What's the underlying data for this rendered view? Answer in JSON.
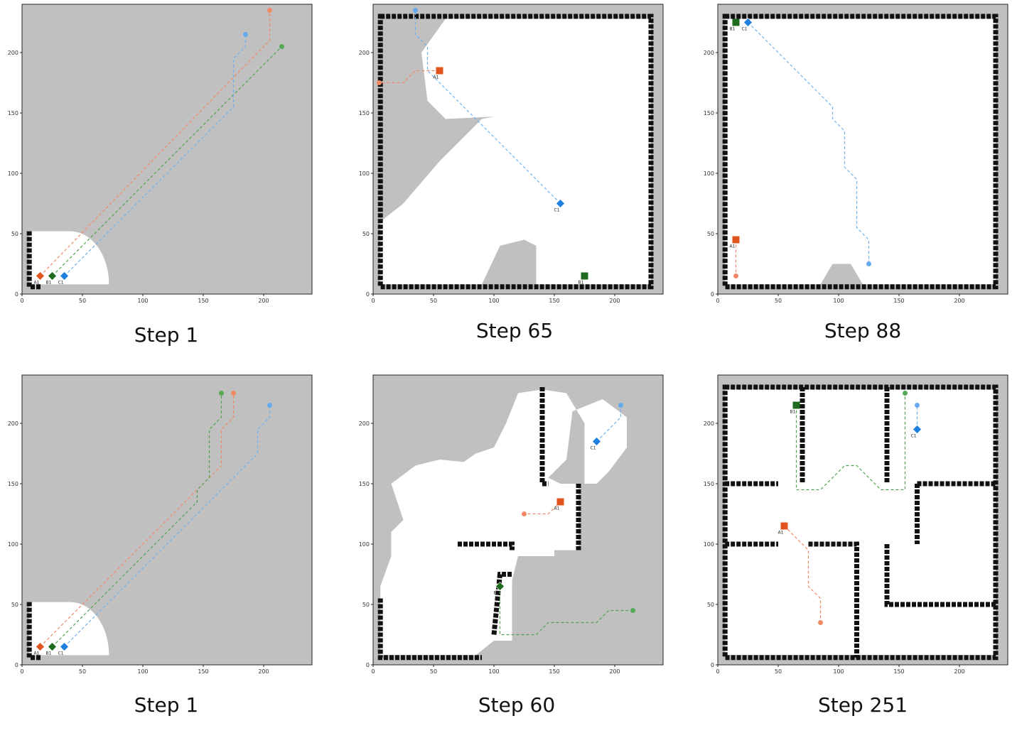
{
  "colors": {
    "unknown": "#c0c0c0",
    "free": "#ffffff",
    "wall": "#111111",
    "robot_a": "#e2541d",
    "robot_b": "#1e6b1e",
    "robot_c": "#1f7fe0",
    "path_a": "#f08a65",
    "path_b": "#4fa34f",
    "path_c": "#6fb2ee",
    "goal_a": "#f08a65",
    "goal_b": "#55aa55",
    "goal_c": "#66aaee"
  },
  "axis_ticks": {
    "x": [
      "0",
      "50",
      "100",
      "150",
      "200"
    ],
    "y": [
      "0",
      "50",
      "100",
      "150",
      "200"
    ]
  },
  "panels": [
    {
      "caption": "Step 1",
      "robots": [
        {
          "label": "A1",
          "id": "a",
          "shape": "diamond",
          "x": 15,
          "y": 15,
          "goal": [
            205,
            235
          ],
          "path": [
            [
              15,
              15
            ],
            [
              195,
              200
            ],
            [
              205,
              210
            ],
            [
              205,
              235
            ]
          ]
        },
        {
          "label": "B1",
          "id": "b",
          "shape": "diamond",
          "x": 25,
          "y": 15,
          "goal": [
            215,
            205
          ],
          "path": [
            [
              25,
              15
            ],
            [
              215,
              205
            ]
          ]
        },
        {
          "label": "C1",
          "id": "c",
          "shape": "diamond",
          "x": 35,
          "y": 15,
          "goal": [
            185,
            215
          ],
          "path": [
            [
              35,
              15
            ],
            [
              175,
              155
            ],
            [
              175,
              195
            ],
            [
              185,
              205
            ],
            [
              185,
              215
            ]
          ]
        }
      ]
    },
    {
      "caption": "Step 65",
      "robots": [
        {
          "label": "A1",
          "id": "a",
          "shape": "square",
          "x": 55,
          "y": 185,
          "goal": [
            5,
            175
          ],
          "path": [
            [
              55,
              185
            ],
            [
              35,
              185
            ],
            [
              25,
              175
            ],
            [
              5,
              175
            ]
          ]
        },
        {
          "label": "B1",
          "id": "b",
          "shape": "square",
          "x": 175,
          "y": 15,
          "goal": null,
          "path": []
        },
        {
          "label": "C1",
          "id": "c",
          "shape": "diamond",
          "x": 155,
          "y": 75,
          "goal": [
            35,
            235
          ],
          "path": [
            [
              155,
              75
            ],
            [
              45,
              185
            ],
            [
              45,
              205
            ],
            [
              35,
              215
            ],
            [
              35,
              235
            ]
          ]
        }
      ]
    },
    {
      "caption": "Step 88",
      "robots": [
        {
          "label": "A1",
          "id": "a",
          "shape": "square",
          "x": 15,
          "y": 45,
          "goal": [
            15,
            15
          ],
          "path": [
            [
              15,
              45
            ],
            [
              15,
              15
            ]
          ]
        },
        {
          "label": "B1",
          "id": "b",
          "shape": "square",
          "x": 15,
          "y": 225,
          "goal": null,
          "path": []
        },
        {
          "label": "C1",
          "id": "c",
          "shape": "diamond",
          "x": 25,
          "y": 225,
          "goal": [
            125,
            25
          ],
          "path": [
            [
              25,
              225
            ],
            [
              95,
              155
            ],
            [
              95,
              145
            ],
            [
              105,
              135
            ],
            [
              105,
              105
            ],
            [
              115,
              95
            ],
            [
              115,
              55
            ],
            [
              125,
              45
            ],
            [
              125,
              25
            ]
          ]
        }
      ]
    },
    {
      "caption": "Step 1",
      "robots": [
        {
          "label": "A1",
          "id": "a",
          "shape": "diamond",
          "x": 15,
          "y": 15,
          "goal": [
            175,
            225
          ],
          "path": [
            [
              15,
              15
            ],
            [
              165,
              165
            ],
            [
              165,
              195
            ],
            [
              175,
              205
            ],
            [
              175,
              225
            ]
          ]
        },
        {
          "label": "B1",
          "id": "b",
          "shape": "diamond",
          "x": 25,
          "y": 15,
          "goal": [
            165,
            225
          ],
          "path": [
            [
              25,
              15
            ],
            [
              145,
              135
            ],
            [
              145,
              145
            ],
            [
              155,
              155
            ],
            [
              155,
              195
            ],
            [
              165,
              205
            ],
            [
              165,
              225
            ]
          ]
        },
        {
          "label": "C1",
          "id": "c",
          "shape": "diamond",
          "x": 35,
          "y": 15,
          "goal": [
            205,
            215
          ],
          "path": [
            [
              35,
              15
            ],
            [
              195,
              175
            ],
            [
              195,
              195
            ],
            [
              205,
              205
            ],
            [
              205,
              215
            ]
          ]
        }
      ]
    },
    {
      "caption": "Step 60",
      "robots": [
        {
          "label": "A1",
          "id": "a",
          "shape": "square",
          "x": 155,
          "y": 135,
          "goal": [
            125,
            125
          ],
          "path": [
            [
              155,
              135
            ],
            [
              145,
              125
            ],
            [
              125,
              125
            ]
          ]
        },
        {
          "label": "B1",
          "id": "b",
          "shape": "diamond",
          "x": 105,
          "y": 65,
          "goal": [
            215,
            45
          ],
          "path": [
            [
              105,
              65
            ],
            [
              105,
              25
            ],
            [
              135,
              25
            ],
            [
              145,
              35
            ],
            [
              185,
              35
            ],
            [
              195,
              45
            ],
            [
              215,
              45
            ]
          ]
        },
        {
          "label": "C1",
          "id": "c",
          "shape": "diamond",
          "x": 185,
          "y": 185,
          "goal": [
            205,
            215
          ],
          "path": [
            [
              185,
              185
            ],
            [
              205,
              205
            ],
            [
              205,
              215
            ]
          ]
        }
      ]
    },
    {
      "caption": "Step 251",
      "robots": [
        {
          "label": "A1",
          "id": "a",
          "shape": "square",
          "x": 55,
          "y": 115,
          "goal": [
            85,
            35
          ],
          "path": [
            [
              55,
              115
            ],
            [
              65,
              105
            ],
            [
              75,
              95
            ],
            [
              75,
              65
            ],
            [
              85,
              55
            ],
            [
              85,
              35
            ]
          ]
        },
        {
          "label": "B1",
          "id": "b",
          "shape": "square",
          "x": 65,
          "y": 215,
          "goal": [
            155,
            225
          ],
          "path": [
            [
              65,
              215
            ],
            [
              65,
              145
            ],
            [
              85,
              145
            ],
            [
              105,
              165
            ],
            [
              115,
              165
            ],
            [
              135,
              145
            ],
            [
              155,
              145
            ],
            [
              155,
              225
            ]
          ]
        },
        {
          "label": "C1",
          "id": "c",
          "shape": "diamond",
          "x": 165,
          "y": 195,
          "goal": [
            165,
            215
          ],
          "path": [
            [
              165,
              195
            ],
            [
              165,
              215
            ]
          ]
        }
      ]
    }
  ]
}
